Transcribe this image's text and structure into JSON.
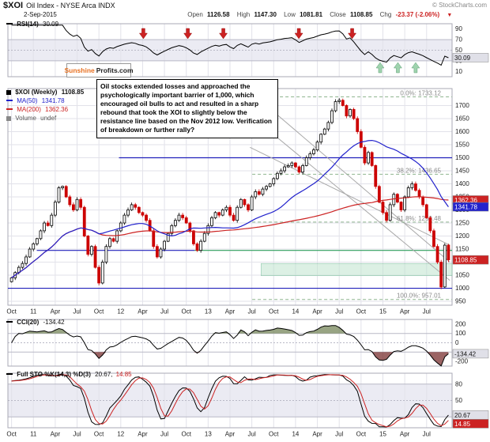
{
  "header": {
    "symbol": "$XOI",
    "title_rest": "Oil Index - NYSE Arca INDX",
    "copyright": "© StockCharts.com",
    "date": "2-Sep-2015",
    "quote": [
      {
        "label": "Open",
        "value": "1126.58"
      },
      {
        "label": "High",
        "value": "1147.30"
      },
      {
        "label": "Low",
        "value": "1081.81"
      },
      {
        "label": "Close",
        "value": "1108.85"
      },
      {
        "label": "Chg",
        "value": "-23.37 (-2.06%)"
      }
    ],
    "chg_arrow": "▼"
  },
  "logo": {
    "part1": "Sunshine",
    "part2": "Profits.com"
  },
  "rsi_panel": {
    "label": "RSI(14)",
    "value": "30.09",
    "axis": [
      90,
      70,
      50,
      30,
      10
    ],
    "band": [
      30,
      70
    ],
    "last_box": "30.09"
  },
  "price_panel": {
    "legend": [
      {
        "label": "$XOI (Weekly)",
        "value": "1108.85",
        "color": "#000000"
      },
      {
        "label": "MA(50)",
        "value": "1341.78",
        "color": "#2222cc"
      },
      {
        "label": "MA(200)",
        "value": "1362.36",
        "color": "#cc2222"
      },
      {
        "label": "Volume",
        "value": "undef",
        "color": "#888888"
      }
    ],
    "axis_labels": [
      1700,
      1650,
      1600,
      1550,
      1500,
      1450,
      1400,
      1350,
      1300,
      1250,
      1200,
      1150,
      1100,
      1050,
      1000,
      950
    ],
    "last_box": "1108.85",
    "ma50_box": "1341.78",
    "ma200_box": "1362.36"
  },
  "annotation": {
    "text": "Oil stocks extended losses and approached the psychologically important barrier of 1,000, which encouraged oil bulls to act and resulted in a sharp rebound that took the XOI to slightly below the resistance line based on the Nov 2012 low. Verification of breakdown or further rally?"
  },
  "cci_panel": {
    "label": "CCI(20)",
    "value": "-134.42",
    "axis": [
      200,
      100,
      0,
      -100,
      -200
    ],
    "last_box": "-134.42"
  },
  "sto_panel": {
    "label": "Full STO %K(14,3) %D(3)",
    "value_k": "20.67,",
    "value_d": "14.85",
    "axis": [
      80,
      50,
      20
    ],
    "band": [
      20,
      80
    ],
    "last_box_k": "20.67",
    "last_box_d": "14.85"
  },
  "colors": {
    "up": "#000000",
    "down": "#cc0000",
    "ma50": "#2222cc",
    "ma200": "#cc2222",
    "rsi": "#000000",
    "cci": "#000000",
    "cci_pos": "#75865a",
    "cci_neg": "#7a3030",
    "sto_k": "#000000",
    "sto_d": "#cc2222",
    "grid": "#e2e2ea",
    "band": "#ebebf3",
    "fib": "#8fb58f",
    "trend": "#a9a9a9",
    "hline_blue": "#2222bb",
    "hline_green": "#2e9e5b",
    "zone": "#bfe3cd",
    "arrow_red": "#cc2222",
    "arrow_green": "#9fd3ae",
    "neg": "#cc0000"
  },
  "chart_data": {
    "type": "candlestick",
    "title": "$XOI Oil Index - NYSE Arca INDX (Weekly)",
    "x_unit": "weekly samples Oct-2010 to Sep-2015",
    "price_ylim": [
      935,
      1765
    ],
    "closes": [
      1040,
      1060,
      1080,
      1095,
      1120,
      1150,
      1170,
      1190,
      1220,
      1250,
      1240,
      1280,
      1330,
      1385,
      1390,
      1350,
      1320,
      1300,
      1340,
      1310,
      1200,
      1130,
      1160,
      1080,
      1020,
      1100,
      1160,
      1190,
      1180,
      1220,
      1250,
      1280,
      1300,
      1320,
      1310,
      1290,
      1280,
      1260,
      1220,
      1160,
      1120,
      1150,
      1180,
      1210,
      1240,
      1260,
      1280,
      1270,
      1250,
      1220,
      1170,
      1145,
      1180,
      1210,
      1240,
      1270,
      1290,
      1280,
      1300,
      1310,
      1280,
      1260,
      1310,
      1340,
      1320,
      1300,
      1350,
      1370,
      1360,
      1380,
      1390,
      1400,
      1420,
      1440,
      1450,
      1465,
      1470,
      1480,
      1465,
      1445,
      1470,
      1500,
      1515,
      1530,
      1560,
      1590,
      1610,
      1635,
      1680,
      1715,
      1720,
      1700,
      1660,
      1685,
      1650,
      1600,
      1540,
      1480,
      1520,
      1470,
      1390,
      1330,
      1290,
      1260,
      1320,
      1360,
      1330,
      1300,
      1350,
      1385,
      1400,
      1375,
      1350,
      1320,
      1270,
      1220,
      1160,
      1100,
      1005,
      1165,
      1108.85
    ],
    "ticks": [
      {
        "label": "Oct",
        "i": 0
      },
      {
        "label": "11",
        "i": 6
      },
      {
        "label": "Apr",
        "i": 12
      },
      {
        "label": "Jul",
        "i": 18
      },
      {
        "label": "Oct",
        "i": 24
      },
      {
        "label": "12",
        "i": 30
      },
      {
        "label": "Apr",
        "i": 36
      },
      {
        "label": "Jul",
        "i": 42
      },
      {
        "label": "Oct",
        "i": 48
      },
      {
        "label": "13",
        "i": 54
      },
      {
        "label": "Apr",
        "i": 60
      },
      {
        "label": "Jul",
        "i": 66
      },
      {
        "label": "Oct",
        "i": 72
      },
      {
        "label": "14",
        "i": 78
      },
      {
        "label": "Apr",
        "i": 84
      },
      {
        "label": "Jul",
        "i": 90
      },
      {
        "label": "Oct",
        "i": 96
      },
      {
        "label": "15",
        "i": 102
      },
      {
        "label": "Apr",
        "i": 108
      },
      {
        "label": "Jul",
        "i": 114
      }
    ],
    "indicators": {
      "rsi_period": 14,
      "ma_fast": 50,
      "ma_slow": 200,
      "cci_period": 20,
      "sto": "%K(14,3) %D(3)"
    },
    "fib": [
      {
        "label": "0.0%: 1733.12",
        "v": 1733.12,
        "x0": 0.55
      },
      {
        "label": "38.2%: 1436.65",
        "v": 1436.65,
        "x0": 0.55
      },
      {
        "label": "61.8%: 1253.48",
        "v": 1253.48,
        "x0": 0.55
      },
      {
        "label": "100.0%: 957.01",
        "v": 957.01,
        "x0": 0.55
      }
    ],
    "overlays": {
      "hlines": [
        {
          "v": 1500,
          "x0": 0.25,
          "x1": 1.0,
          "color": "#2222bb"
        },
        {
          "v": 1145,
          "x0": 0.065,
          "x1": 0.42,
          "color": "#2222bb"
        },
        {
          "v": 1000,
          "x0": 0.0,
          "x1": 1.0,
          "color": "#2222bb"
        },
        {
          "v": 1145,
          "x0": 0.42,
          "x1": 1.0,
          "color": "#2e9e5b"
        }
      ],
      "zone": {
        "v0": 1048,
        "v1": 1095,
        "x0": 0.57,
        "x1": 1.0
      },
      "trendlines": [
        {
          "x0": 0.545,
          "v0": 1540,
          "x1": 0.995,
          "v1": 1165
        },
        {
          "x0": 0.555,
          "v0": 1650,
          "x1": 0.995,
          "v1": 1030
        },
        {
          "x0": 0.575,
          "v0": 1710,
          "x1": 0.995,
          "v1": 1100
        }
      ]
    },
    "arrows_red": [
      0.305,
      0.405,
      0.485,
      0.655,
      0.775
    ],
    "arrows_green": [
      0.838,
      0.878,
      0.918
    ]
  }
}
